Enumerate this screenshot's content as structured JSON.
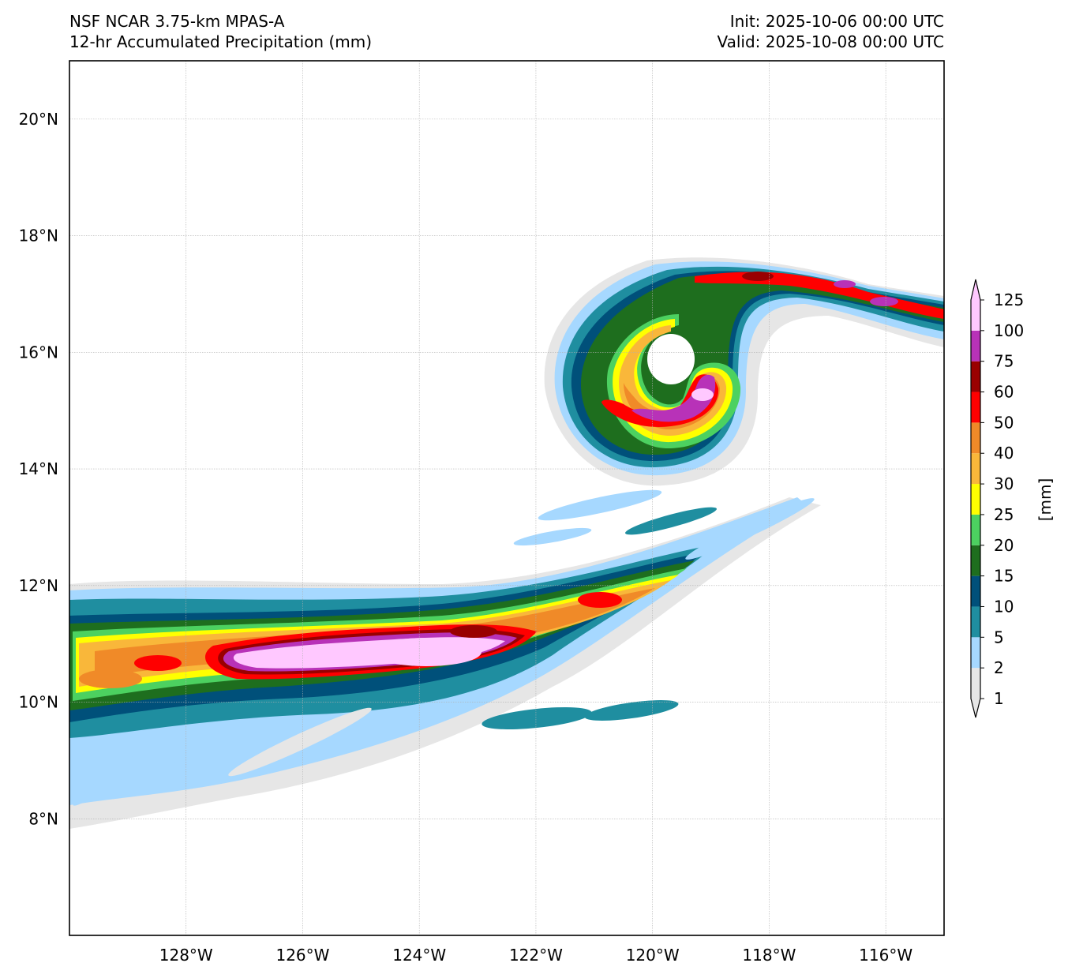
{
  "header": {
    "model": "NSF NCAR 3.75-km MPAS-A",
    "field": "12-hr Accumulated Precipitation (mm)",
    "init": "Init: 2025-10-06 00:00 UTC",
    "valid": "Valid: 2025-10-08 00:00 UTC"
  },
  "map": {
    "lat_range": [
      6,
      21
    ],
    "lon_range": [
      -130,
      -115
    ],
    "lat_ticks": [
      {
        "value": 8,
        "label": "8°N"
      },
      {
        "value": 10,
        "label": "10°N"
      },
      {
        "value": 12,
        "label": "12°N"
      },
      {
        "value": 14,
        "label": "14°N"
      },
      {
        "value": 16,
        "label": "16°N"
      },
      {
        "value": 18,
        "label": "18°N"
      },
      {
        "value": 20,
        "label": "20°N"
      }
    ],
    "lon_ticks": [
      {
        "value": -128,
        "label": "128°W"
      },
      {
        "value": -126,
        "label": "126°W"
      },
      {
        "value": -124,
        "label": "124°W"
      },
      {
        "value": -122,
        "label": "122°W"
      },
      {
        "value": -120,
        "label": "120°W"
      },
      {
        "value": -118,
        "label": "118°W"
      },
      {
        "value": -116,
        "label": "116°W"
      }
    ],
    "gridlines": true,
    "cyclone_center": {
      "lat": 15.6,
      "lon": -119.7
    }
  },
  "colorbar": {
    "label": "[mm]",
    "levels": [
      "1",
      "2",
      "5",
      "10",
      "15",
      "20",
      "25",
      "30",
      "40",
      "50",
      "60",
      "75",
      "100",
      "125"
    ],
    "colors": [
      "#e6e6e6",
      "#a6d8ff",
      "#1f8ea0",
      "#00507a",
      "#1e6e1e",
      "#4cd160",
      "#ffff00",
      "#f9b73a",
      "#f08a28",
      "#ff0000",
      "#990000",
      "#b832b8",
      "#ffc8ff"
    ],
    "extend": "both"
  }
}
